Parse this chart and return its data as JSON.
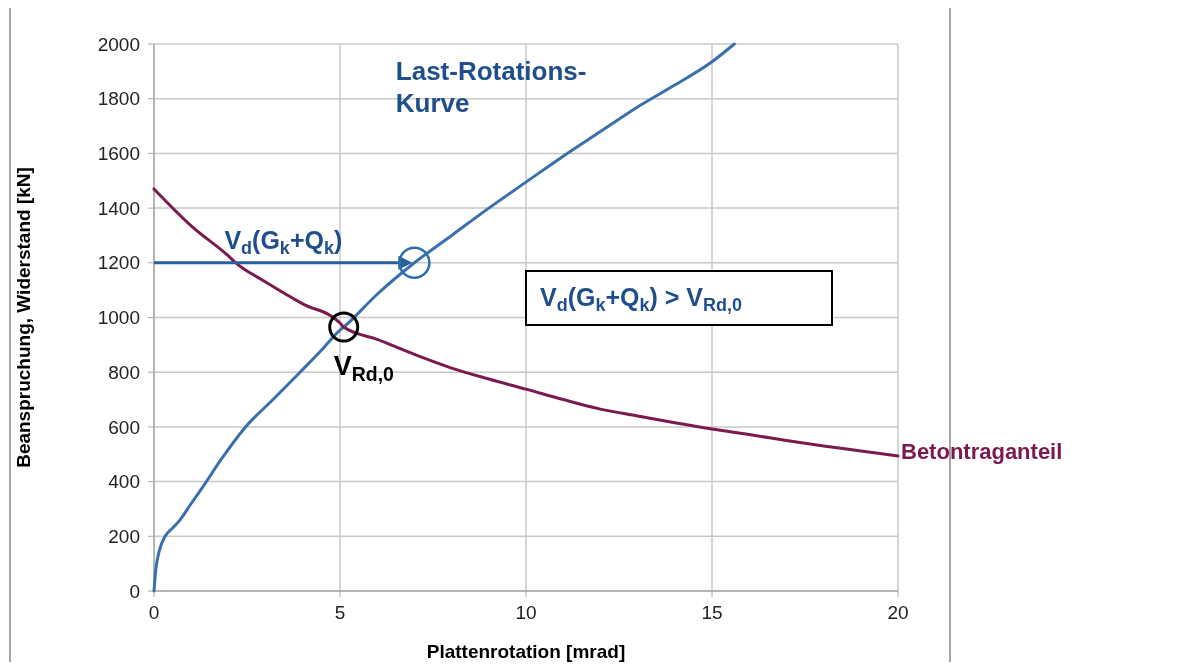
{
  "chart_data": {
    "type": "line",
    "xlabel": "Plattenrotation [mrad]",
    "ylabel": "Beanspruchung, Widerstand [kN]",
    "xlim": [
      0,
      20
    ],
    "xticks": [
      0,
      5,
      10,
      15,
      20
    ],
    "ylim": [
      0,
      2000
    ],
    "yticks": [
      0,
      200,
      400,
      600,
      800,
      1000,
      1200,
      1400,
      1600,
      1800,
      2000
    ],
    "grid": true,
    "marker": "none",
    "line_style": "solid",
    "series": [
      {
        "name": "Last-Rotations-Kurve",
        "color": "#3a6fad",
        "x": [
          0,
          0.05,
          0.15,
          0.3,
          0.5,
          0.7,
          1,
          1.3,
          1.8,
          2.45,
          3.2,
          3.92,
          4.5,
          5,
          5.1,
          6,
          7,
          8,
          9,
          10,
          11,
          12,
          13,
          14,
          15,
          15.6
        ],
        "values": [
          0,
          80,
          150,
          200,
          230,
          260,
          320,
          378,
          480,
          598,
          700,
          799,
          880,
          954,
          965,
          1085,
          1200,
          1300,
          1400,
          1495,
          1590,
          1680,
          1770,
          1850,
          1935,
          2000
        ]
      },
      {
        "name": "Betontraganteil",
        "color": "#7a1a4f",
        "x": [
          0,
          1,
          2,
          2.2,
          3,
          4,
          5,
          5.1,
          6,
          7,
          8,
          9,
          10,
          11,
          12,
          13,
          14,
          15,
          16,
          17,
          18,
          19,
          20
        ],
        "values": [
          1470,
          1335,
          1225,
          1200,
          1130,
          1050,
          980,
          965,
          920,
          865,
          815,
          775,
          738,
          700,
          665,
          640,
          615,
          592,
          572,
          550,
          530,
          512,
          494
        ]
      }
    ],
    "annotations": [
      {
        "text": "V$_{d}$(G$_{k}$+Q$_{k}$)",
        "x": 7,
        "y": 1200
      },
      {
        "text": "V$_{Rd,0}$",
        "x": 5.1,
        "y": 965
      },
      "V$_{d}$(G$_{k}$+Q$_{k}$) > V$_{Rd,0}$"
    ]
  }
}
